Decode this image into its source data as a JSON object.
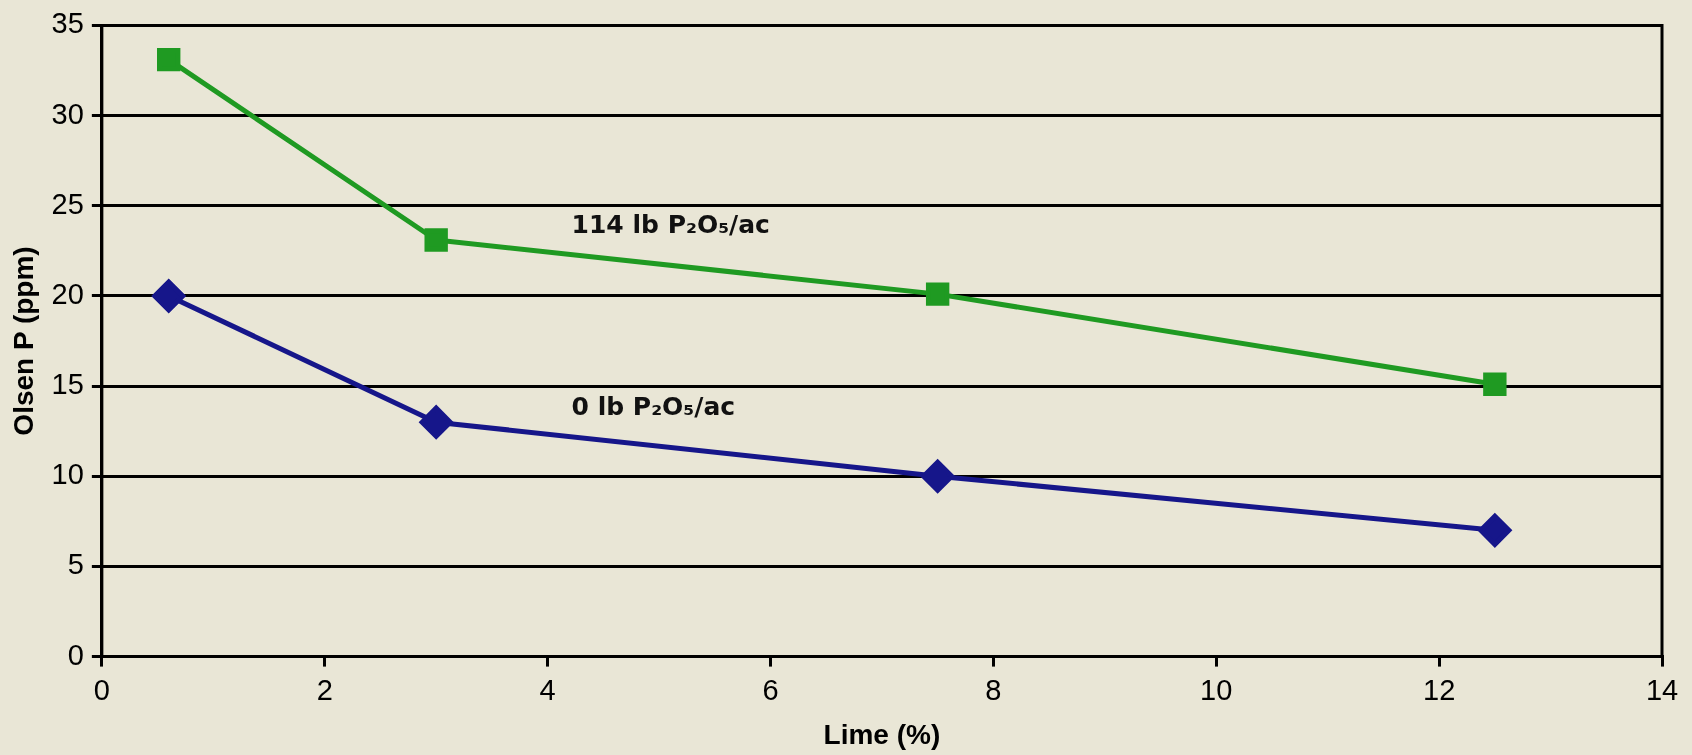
{
  "chart_data": {
    "type": "line",
    "xlabel": "Lime (%)",
    "ylabel": "Olsen P (ppm)",
    "xlim": [
      0,
      14
    ],
    "xticks": [
      0,
      2,
      4,
      6,
      8,
      10,
      12,
      14
    ],
    "ylim": [
      0,
      35
    ],
    "yticks": [
      0,
      5,
      10,
      15,
      20,
      25,
      30,
      35
    ],
    "grid": "y",
    "legend": false,
    "series": [
      {
        "name": "114 lb P₂O₅/ac",
        "color": "#1f9a22",
        "marker": "square",
        "x": [
          0.6,
          3,
          7.5,
          12.5
        ],
        "values": [
          33.1,
          23.1,
          20.1,
          15.1
        ]
      },
      {
        "name": "0 lb P₂O₅/ac",
        "color": "#16168a",
        "marker": "diamond",
        "x": [
          0.6,
          3,
          7.5,
          12.5
        ],
        "values": [
          20,
          13,
          10,
          7
        ]
      }
    ]
  }
}
